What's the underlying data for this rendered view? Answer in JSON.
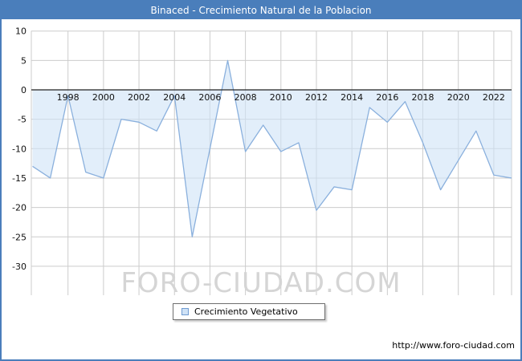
{
  "title": "Binaced - Crecimiento Natural de la Poblacion",
  "watermark": "FORO-CIUDAD.COM",
  "legend": {
    "label": "Crecimiento Vegetativo"
  },
  "footer": {
    "url": "http://www.foro-ciudad.com"
  },
  "colors": {
    "header": "#4a7ebb",
    "frame_border": "#4a7ebb",
    "grid": "#cccccc",
    "zero_axis": "#222222",
    "area_fill": "#cfe2f6",
    "line": "#8ab0dd",
    "watermark": "#d5d5d5"
  },
  "chart_data": {
    "type": "area",
    "title": "Binaced - Crecimiento Natural de la Poblacion",
    "x": [
      1996,
      1997,
      1998,
      1999,
      2000,
      2001,
      2002,
      2003,
      2004,
      2005,
      2006,
      2007,
      2008,
      2009,
      2010,
      2011,
      2012,
      2013,
      2014,
      2015,
      2016,
      2017,
      2018,
      2019,
      2020,
      2021,
      2022,
      2023
    ],
    "series": [
      {
        "name": "Crecimiento Vegetativo",
        "values": [
          -13,
          -15,
          -1,
          -14,
          -15,
          -5,
          -5.5,
          -7,
          -1,
          -25,
          -10,
          5,
          -10.5,
          -6,
          -10.5,
          -9,
          -20.5,
          -16.5,
          -17,
          -3,
          -5.5,
          -2,
          -9,
          -17,
          -12,
          -7,
          -14.5,
          -15
        ]
      }
    ],
    "ylim": [
      -30,
      10
    ],
    "ytick_step": 5,
    "xtick_years": [
      1998,
      2000,
      2002,
      2004,
      2006,
      2008,
      2010,
      2012,
      2014,
      2016,
      2018,
      2020,
      2022
    ],
    "grid": true,
    "legend_position": "bottom",
    "xlabel": "",
    "ylabel": ""
  }
}
